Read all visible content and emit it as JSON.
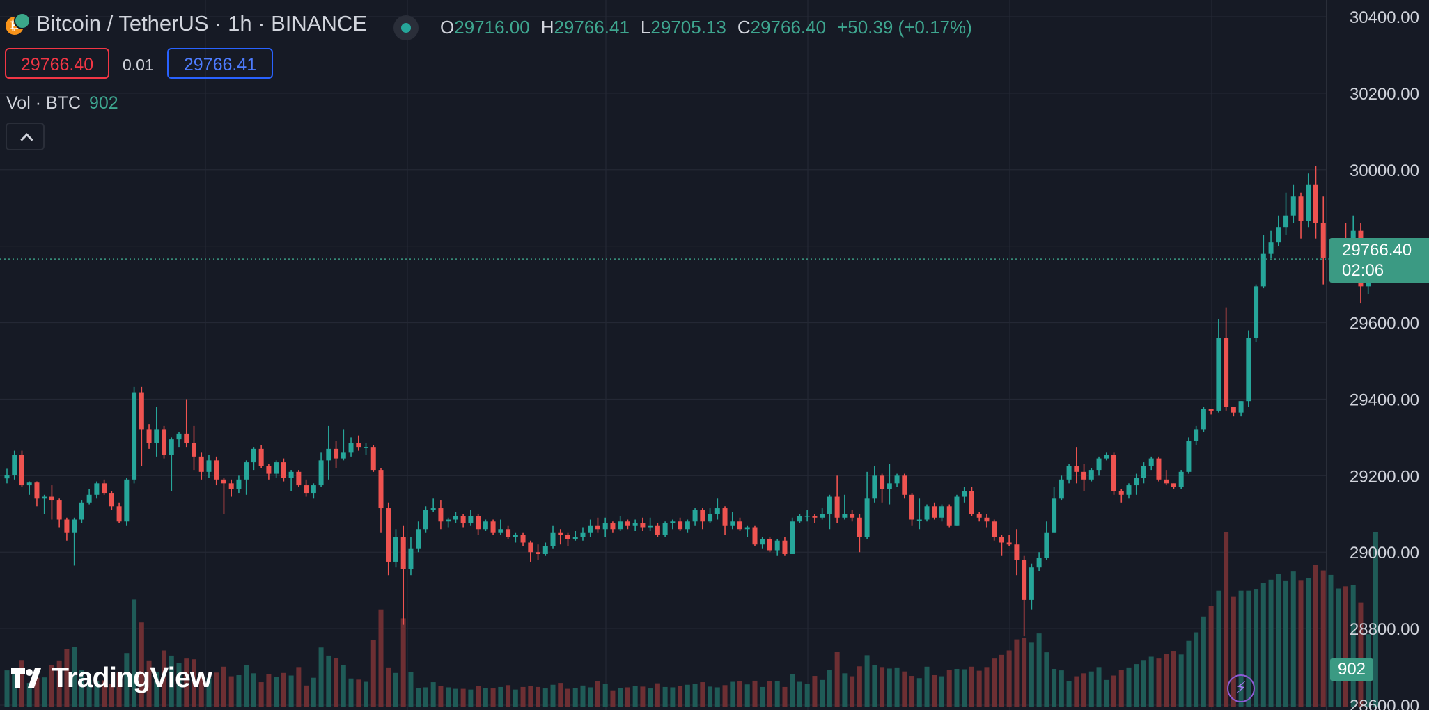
{
  "header": {
    "symbol": "Bitcoin / TetherUS · 1h · BINANCE",
    "ohlc": {
      "o_label": "O",
      "o": "29716.00",
      "h_label": "H",
      "h": "29766.41",
      "l_label": "L",
      "l": "29705.13",
      "c_label": "C",
      "c": "29766.40",
      "change": "+50.39 (+0.17%)"
    },
    "sell_price": "29766.40",
    "spread": "0.01",
    "buy_price": "29766.41",
    "volume_label": "Vol · BTC",
    "volume_value": "902"
  },
  "price_tag": {
    "price": "29766.40",
    "countdown": "02:06"
  },
  "volume_tag": "902",
  "logo_text": "TradingView",
  "colors": {
    "background": "#161a25",
    "up": "#26a69a",
    "down": "#ef5350",
    "grid": "#242835",
    "axis_text": "#d1d4dc"
  },
  "chart_data": {
    "type": "candlestick",
    "interval": "1h",
    "y_ticks": [
      "30400.00",
      "30200.00",
      "30000.00",
      "29800.00",
      "29600.00",
      "29400.00",
      "29200.00",
      "29000.00",
      "28800.00",
      "28600.00"
    ],
    "ylim": [
      28580,
      30420
    ],
    "last_price": 29766.4,
    "candles": [
      [
        29193,
        29201,
        29180,
        29218,
        "u",
        98
      ],
      [
        29201,
        29255,
        29190,
        29265,
        "u",
        95
      ],
      [
        29255,
        29175,
        29170,
        29265,
        "d",
        126
      ],
      [
        29175,
        29182,
        29150,
        29185,
        "u",
        64
      ],
      [
        29182,
        29140,
        29120,
        29185,
        "d",
        78
      ],
      [
        29140,
        29145,
        29100,
        29150,
        "u",
        79
      ],
      [
        29145,
        29135,
        29085,
        29175,
        "d",
        113
      ],
      [
        29135,
        29085,
        29065,
        29140,
        "d",
        125
      ],
      [
        29085,
        29050,
        29030,
        29090,
        "d",
        155
      ],
      [
        29050,
        29085,
        28965,
        29090,
        "u",
        162
      ],
      [
        29085,
        29130,
        29075,
        29135,
        "u",
        98
      ],
      [
        29130,
        29150,
        29125,
        29165,
        "u",
        72
      ],
      [
        29150,
        29180,
        29140,
        29185,
        "u",
        70
      ],
      [
        29180,
        29155,
        29150,
        29190,
        "d",
        71
      ],
      [
        29155,
        29120,
        29110,
        29160,
        "d",
        62
      ],
      [
        29120,
        29080,
        29075,
        29130,
        "d",
        92
      ],
      [
        29080,
        29190,
        29070,
        29195,
        "u",
        145
      ],
      [
        29190,
        29418,
        29180,
        29432,
        "u",
        290
      ],
      [
        29418,
        29320,
        29225,
        29432,
        "d",
        228
      ],
      [
        29320,
        29285,
        29270,
        29335,
        "d",
        125
      ],
      [
        29285,
        29320,
        29250,
        29380,
        "u",
        94
      ],
      [
        29320,
        29255,
        29245,
        29330,
        "d",
        152
      ],
      [
        29255,
        29295,
        29160,
        29300,
        "u",
        138
      ],
      [
        29295,
        29310,
        29275,
        29315,
        "u",
        117
      ],
      [
        29310,
        29285,
        29275,
        29400,
        "d",
        130
      ],
      [
        29285,
        29250,
        29215,
        29330,
        "d",
        128
      ],
      [
        29250,
        29210,
        29190,
        29260,
        "d",
        90
      ],
      [
        29210,
        29240,
        29195,
        29255,
        "u",
        78
      ],
      [
        29240,
        29190,
        29175,
        29250,
        "d",
        92
      ],
      [
        29190,
        29180,
        29100,
        29195,
        "d",
        108
      ],
      [
        29180,
        29165,
        29145,
        29190,
        "d",
        82
      ],
      [
        29165,
        29190,
        29155,
        29200,
        "u",
        85
      ],
      [
        29190,
        29235,
        29150,
        29240,
        "u",
        113
      ],
      [
        29235,
        29270,
        29215,
        29275,
        "u",
        90
      ],
      [
        29270,
        29225,
        29220,
        29280,
        "d",
        66
      ],
      [
        29225,
        29205,
        29190,
        29230,
        "d",
        88
      ],
      [
        29205,
        29235,
        29195,
        29240,
        "u",
        80
      ],
      [
        29235,
        29195,
        29185,
        29245,
        "d",
        91
      ],
      [
        29195,
        29210,
        29160,
        29215,
        "u",
        84
      ],
      [
        29210,
        29175,
        29170,
        29215,
        "d",
        107
      ],
      [
        29175,
        29155,
        29145,
        29190,
        "d",
        57
      ],
      [
        29155,
        29175,
        29140,
        29180,
        "u",
        78
      ],
      [
        29175,
        29240,
        29170,
        29260,
        "u",
        160
      ],
      [
        29240,
        29270,
        29190,
        29330,
        "u",
        138
      ],
      [
        29270,
        29245,
        29220,
        29290,
        "d",
        132
      ],
      [
        29245,
        29260,
        29240,
        29320,
        "u",
        112
      ],
      [
        29260,
        29285,
        29250,
        29300,
        "u",
        76
      ],
      [
        29285,
        29275,
        29265,
        29305,
        "d",
        73
      ],
      [
        29275,
        29275,
        29255,
        29285,
        "u",
        67
      ],
      [
        29275,
        29215,
        29210,
        29280,
        "d",
        181
      ],
      [
        29215,
        29115,
        29050,
        29220,
        "d",
        263
      ],
      [
        29115,
        28975,
        28940,
        29130,
        "d",
        106
      ],
      [
        28975,
        29040,
        28960,
        29060,
        "u",
        91
      ],
      [
        29040,
        28955,
        28810,
        29070,
        "d",
        239
      ],
      [
        28955,
        29010,
        28940,
        29040,
        "u",
        93
      ],
      [
        29010,
        29060,
        29000,
        29080,
        "u",
        51
      ],
      [
        29060,
        29110,
        29050,
        29120,
        "u",
        52
      ],
      [
        29110,
        29115,
        29105,
        29140,
        "u",
        66
      ],
      [
        29115,
        29080,
        29060,
        29135,
        "d",
        56
      ],
      [
        29080,
        29085,
        29065,
        29090,
        "u",
        52
      ],
      [
        29085,
        29095,
        29075,
        29105,
        "u",
        48
      ],
      [
        29095,
        29075,
        29065,
        29100,
        "d",
        48
      ],
      [
        29075,
        29095,
        29070,
        29110,
        "u",
        46
      ],
      [
        29095,
        29060,
        29045,
        29100,
        "d",
        56
      ],
      [
        29060,
        29080,
        29055,
        29085,
        "u",
        51
      ],
      [
        29080,
        29050,
        29045,
        29085,
        "d",
        49
      ],
      [
        29050,
        29060,
        29045,
        29085,
        "u",
        53
      ],
      [
        29060,
        29040,
        29035,
        29070,
        "d",
        58
      ],
      [
        29040,
        29045,
        29025,
        29050,
        "u",
        46
      ],
      [
        29045,
        29025,
        29015,
        29050,
        "d",
        53
      ],
      [
        29025,
        29000,
        28975,
        29030,
        "d",
        56
      ],
      [
        29000,
        28995,
        28980,
        29020,
        "d",
        53
      ],
      [
        28995,
        29015,
        28990,
        29025,
        "u",
        49
      ],
      [
        29015,
        29050,
        29010,
        29070,
        "u",
        59
      ],
      [
        29050,
        29045,
        29020,
        29060,
        "d",
        64
      ],
      [
        29045,
        29035,
        29015,
        29050,
        "d",
        48
      ],
      [
        29035,
        29040,
        29030,
        29055,
        "u",
        50
      ],
      [
        29040,
        29050,
        29030,
        29065,
        "u",
        57
      ],
      [
        29050,
        29070,
        29040,
        29085,
        "u",
        52
      ],
      [
        29070,
        29060,
        29050,
        29090,
        "d",
        68
      ],
      [
        29060,
        29075,
        29040,
        29090,
        "u",
        61
      ],
      [
        29075,
        29060,
        29050,
        29080,
        "d",
        44
      ],
      [
        29060,
        29080,
        29055,
        29095,
        "u",
        51
      ],
      [
        29080,
        29070,
        29060,
        29085,
        "d",
        52
      ],
      [
        29070,
        29075,
        29055,
        29085,
        "u",
        55
      ],
      [
        29075,
        29065,
        29055,
        29090,
        "d",
        54
      ],
      [
        29065,
        29070,
        29055,
        29090,
        "u",
        49
      ],
      [
        29070,
        29045,
        29040,
        29075,
        "d",
        63
      ],
      [
        29045,
        29075,
        29040,
        29080,
        "u",
        53
      ],
      [
        29075,
        29080,
        29060,
        29085,
        "u",
        52
      ],
      [
        29080,
        29060,
        29055,
        29090,
        "d",
        56
      ],
      [
        29060,
        29080,
        29050,
        29085,
        "u",
        59
      ],
      [
        29080,
        29110,
        29070,
        29115,
        "u",
        62
      ],
      [
        29110,
        29080,
        29060,
        29115,
        "d",
        66
      ],
      [
        29080,
        29100,
        29075,
        29115,
        "u",
        54
      ],
      [
        29100,
        29115,
        29085,
        29140,
        "u",
        52
      ],
      [
        29115,
        29070,
        29045,
        29120,
        "d",
        58
      ],
      [
        29070,
        29080,
        29060,
        29105,
        "u",
        67
      ],
      [
        29080,
        29060,
        29055,
        29090,
        "d",
        68
      ],
      [
        29060,
        29065,
        29040,
        29070,
        "u",
        60
      ],
      [
        29065,
        29020,
        29015,
        29070,
        "d",
        70
      ],
      [
        29020,
        29035,
        29010,
        29040,
        "u",
        53
      ],
      [
        29035,
        29005,
        29000,
        29040,
        "d",
        69
      ],
      [
        29005,
        29030,
        28990,
        29035,
        "u",
        68
      ],
      [
        29030,
        28995,
        28990,
        29040,
        "d",
        53
      ],
      [
        28995,
        29080,
        28995,
        29090,
        "u",
        88
      ],
      [
        29080,
        29095,
        29075,
        29100,
        "u",
        67
      ],
      [
        29095,
        29095,
        29080,
        29110,
        "u",
        62
      ],
      [
        29095,
        29090,
        29075,
        29100,
        "d",
        83
      ],
      [
        29090,
        29100,
        29085,
        29115,
        "u",
        72
      ],
      [
        29100,
        29145,
        29060,
        29150,
        "u",
        99
      ],
      [
        29145,
        29090,
        29075,
        29200,
        "d",
        148
      ],
      [
        29090,
        29100,
        29085,
        29150,
        "u",
        90
      ],
      [
        29100,
        29090,
        29080,
        29110,
        "d",
        82
      ],
      [
        29090,
        29040,
        29000,
        29100,
        "d",
        109
      ],
      [
        29040,
        29140,
        29035,
        29210,
        "u",
        139
      ],
      [
        29140,
        29200,
        29130,
        29225,
        "u",
        113
      ],
      [
        29200,
        29165,
        29130,
        29205,
        "d",
        107
      ],
      [
        29165,
        29180,
        29125,
        29230,
        "u",
        103
      ],
      [
        29180,
        29200,
        29170,
        29205,
        "u",
        106
      ],
      [
        29200,
        29150,
        29140,
        29205,
        "d",
        95
      ],
      [
        29150,
        29085,
        29070,
        29155,
        "d",
        83
      ],
      [
        29085,
        29085,
        29060,
        29140,
        "u",
        77
      ],
      [
        29085,
        29120,
        29080,
        29125,
        "u",
        108
      ],
      [
        29120,
        29090,
        29085,
        29130,
        "d",
        85
      ],
      [
        29090,
        29120,
        29080,
        29125,
        "u",
        82
      ],
      [
        29120,
        29070,
        29065,
        29125,
        "d",
        99
      ],
      [
        29070,
        29145,
        29070,
        29150,
        "u",
        102
      ],
      [
        29145,
        29160,
        29130,
        29170,
        "u",
        101
      ],
      [
        29160,
        29100,
        29095,
        29170,
        "d",
        108
      ],
      [
        29100,
        29090,
        29080,
        29105,
        "d",
        97
      ],
      [
        29090,
        29080,
        29065,
        29100,
        "d",
        107
      ],
      [
        29080,
        29040,
        29030,
        29085,
        "d",
        130
      ],
      [
        29040,
        29025,
        28990,
        29045,
        "d",
        140
      ],
      [
        29025,
        29020,
        29015,
        29045,
        "d",
        152
      ],
      [
        29020,
        28980,
        28940,
        29060,
        "d",
        182
      ],
      [
        28980,
        28875,
        28780,
        28990,
        "d",
        187
      ],
      [
        28875,
        28960,
        28850,
        28970,
        "u",
        173
      ],
      [
        28960,
        28985,
        28950,
        29000,
        "u",
        198
      ],
      [
        28985,
        29050,
        28980,
        29080,
        "u",
        147
      ],
      [
        29050,
        29140,
        29050,
        29170,
        "u",
        102
      ],
      [
        29140,
        29190,
        29135,
        29200,
        "u",
        98
      ],
      [
        29190,
        29225,
        29180,
        29230,
        "u",
        69
      ],
      [
        29225,
        29210,
        29180,
        29275,
        "d",
        82
      ],
      [
        29210,
        29190,
        29160,
        29230,
        "d",
        90
      ],
      [
        29190,
        29215,
        29185,
        29220,
        "u",
        95
      ],
      [
        29215,
        29245,
        29200,
        29250,
        "u",
        107
      ],
      [
        29245,
        29255,
        29240,
        29260,
        "u",
        72
      ],
      [
        29255,
        29160,
        29150,
        29260,
        "d",
        84
      ],
      [
        29160,
        29150,
        29130,
        29165,
        "d",
        100
      ],
      [
        29150,
        29175,
        29140,
        29180,
        "u",
        106
      ],
      [
        29175,
        29195,
        29150,
        29205,
        "u",
        115
      ],
      [
        29195,
        29225,
        29180,
        29235,
        "u",
        126
      ],
      [
        29225,
        29245,
        29215,
        29250,
        "u",
        135
      ],
      [
        29245,
        29190,
        29185,
        29250,
        "d",
        130
      ],
      [
        29190,
        29180,
        29175,
        29215,
        "d",
        143
      ],
      [
        29180,
        29170,
        29165,
        29180,
        "d",
        151
      ],
      [
        29170,
        29210,
        29165,
        29215,
        "u",
        141
      ],
      [
        29210,
        29290,
        29205,
        29300,
        "u",
        178
      ],
      [
        29290,
        29320,
        29280,
        29330,
        "u",
        201
      ],
      [
        29320,
        29375,
        29315,
        29380,
        "u",
        244
      ],
      [
        29375,
        29370,
        29360,
        29375,
        "d",
        273
      ],
      [
        29370,
        29560,
        29365,
        29610,
        "u",
        314
      ],
      [
        29560,
        29380,
        29370,
        29640,
        "d",
        472
      ],
      [
        29380,
        29365,
        29355,
        29380,
        "d",
        299
      ],
      [
        29365,
        29395,
        29355,
        29395,
        "u",
        314
      ],
      [
        29395,
        29560,
        29380,
        29580,
        "u",
        314
      ],
      [
        29560,
        29695,
        29550,
        29700,
        "u",
        319
      ],
      [
        29695,
        29780,
        29690,
        29830,
        "u",
        336
      ],
      [
        29780,
        29810,
        29770,
        29840,
        "u",
        344
      ],
      [
        29810,
        29850,
        29800,
        29880,
        "u",
        359
      ],
      [
        29850,
        29880,
        29830,
        29940,
        "u",
        342
      ],
      [
        29880,
        29930,
        29860,
        29960,
        "u",
        366
      ],
      [
        29930,
        29865,
        29820,
        29940,
        "d",
        343
      ],
      [
        29865,
        29960,
        29850,
        29990,
        "u",
        349
      ],
      [
        29960,
        29860,
        29820,
        30010,
        "d",
        384
      ],
      [
        29860,
        29770,
        29700,
        29930,
        "d",
        369
      ],
      [
        29770,
        29765,
        29750,
        29800,
        "u",
        357
      ],
      [
        29765,
        29780,
        29760,
        29790,
        "u",
        320
      ],
      [
        29780,
        29770,
        29760,
        29860,
        "d",
        326
      ],
      [
        29770,
        29840,
        29760,
        29880,
        "u",
        330
      ],
      [
        29840,
        29695,
        29650,
        29860,
        "d",
        282
      ],
      [
        29695,
        29720,
        29675,
        29730,
        "u",
        196
      ],
      [
        29716,
        29766,
        29705,
        29766,
        "u",
        902
      ]
    ],
    "volume_units": "BTC"
  }
}
